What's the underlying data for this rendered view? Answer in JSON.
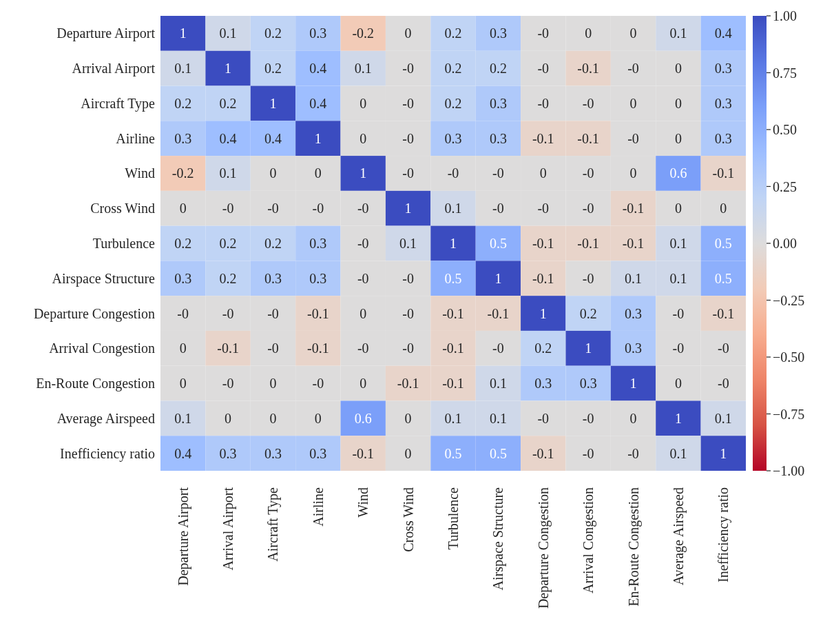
{
  "chart_data": {
    "type": "heatmap",
    "categories": [
      "Departure Airport",
      "Arrival Airport",
      "Aircraft Type",
      "Airline",
      "Wind",
      "Cross Wind",
      "Turbulence",
      "Airspace Structure",
      "Departure Congestion",
      "Arrival Congestion",
      "En-Route Congestion",
      "Average Airspeed",
      "Inefficiency ratio"
    ],
    "y_categories": [
      "Departure Airport",
      "Arrival Airport",
      "Aircraft Type",
      "Airline",
      "Wind",
      "Cross Wind",
      "Turbulence",
      "Airspace Structure",
      "Departure Congestion",
      "Arrival Congestion",
      "En-Route Congestion",
      "Average Airspeed",
      "Inefficiency ratio"
    ],
    "cells": [
      [
        1,
        0.1,
        0.2,
        0.3,
        -0.2,
        0,
        0.2,
        0.3,
        0,
        0,
        0,
        0.1,
        0.4
      ],
      [
        0.1,
        1,
        0.2,
        0.4,
        0.1,
        0,
        0.2,
        0.2,
        0,
        -0.1,
        0,
        0,
        0.3
      ],
      [
        0.2,
        0.2,
        1,
        0.4,
        0,
        0,
        0.2,
        0.3,
        0,
        0,
        0,
        0,
        0.3
      ],
      [
        0.3,
        0.4,
        0.4,
        1,
        0,
        0,
        0.3,
        0.3,
        -0.1,
        -0.1,
        0,
        0,
        0.3
      ],
      [
        -0.2,
        0.1,
        0,
        0,
        1,
        0,
        0,
        0,
        0,
        0,
        0,
        0.6,
        -0.1
      ],
      [
        0,
        0,
        0,
        0,
        0,
        1,
        0.1,
        0,
        0,
        0,
        -0.1,
        0,
        0
      ],
      [
        0.2,
        0.2,
        0.2,
        0.3,
        0,
        0.1,
        1,
        0.5,
        -0.1,
        -0.1,
        -0.1,
        0.1,
        0.5
      ],
      [
        0.3,
        0.2,
        0.3,
        0.3,
        0,
        0,
        0.5,
        1,
        -0.1,
        0,
        0.1,
        0.1,
        0.5
      ],
      [
        0,
        0,
        0,
        -0.1,
        0,
        0,
        -0.1,
        -0.1,
        1,
        0.2,
        0.3,
        0,
        -0.1
      ],
      [
        0,
        -0.1,
        0,
        -0.1,
        0,
        0,
        -0.1,
        0,
        0.2,
        1,
        0.3,
        0,
        0
      ],
      [
        0,
        0,
        0,
        0,
        0,
        -0.1,
        -0.1,
        0.1,
        0.3,
        0.3,
        1,
        0,
        0
      ],
      [
        0.1,
        0,
        0,
        0,
        0.6,
        0,
        0.1,
        0.1,
        0,
        0,
        0,
        1,
        0.1
      ],
      [
        0.4,
        0.3,
        0.3,
        0.3,
        -0.1,
        0,
        0.5,
        0.5,
        -0.1,
        0,
        0,
        0.1,
        1
      ]
    ],
    "cell_labels": [
      [
        "1",
        "0.1",
        "0.2",
        "0.3",
        "-0.2",
        "0",
        "0.2",
        "0.3",
        "-0",
        "0",
        "0",
        "0.1",
        "0.4"
      ],
      [
        "0.1",
        "1",
        "0.2",
        "0.4",
        "0.1",
        "-0",
        "0.2",
        "0.2",
        "-0",
        "-0.1",
        "-0",
        "0",
        "0.3"
      ],
      [
        "0.2",
        "0.2",
        "1",
        "0.4",
        "0",
        "-0",
        "0.2",
        "0.3",
        "-0",
        "-0",
        "0",
        "0",
        "0.3"
      ],
      [
        "0.3",
        "0.4",
        "0.4",
        "1",
        "0",
        "-0",
        "0.3",
        "0.3",
        "-0.1",
        "-0.1",
        "-0",
        "0",
        "0.3"
      ],
      [
        "-0.2",
        "0.1",
        "0",
        "0",
        "1",
        "-0",
        "-0",
        "-0",
        "0",
        "-0",
        "0",
        "0.6",
        "-0.1"
      ],
      [
        "0",
        "-0",
        "-0",
        "-0",
        "-0",
        "1",
        "0.1",
        "-0",
        "-0",
        "-0",
        "-0.1",
        "0",
        "0"
      ],
      [
        "0.2",
        "0.2",
        "0.2",
        "0.3",
        "-0",
        "0.1",
        "1",
        "0.5",
        "-0.1",
        "-0.1",
        "-0.1",
        "0.1",
        "0.5"
      ],
      [
        "0.3",
        "0.2",
        "0.3",
        "0.3",
        "-0",
        "-0",
        "0.5",
        "1",
        "-0.1",
        "-0",
        "0.1",
        "0.1",
        "0.5"
      ],
      [
        "-0",
        "-0",
        "-0",
        "-0.1",
        "0",
        "-0",
        "-0.1",
        "-0.1",
        "1",
        "0.2",
        "0.3",
        "-0",
        "-0.1"
      ],
      [
        "0",
        "-0.1",
        "-0",
        "-0.1",
        "-0",
        "-0",
        "-0.1",
        "-0",
        "0.2",
        "1",
        "0.3",
        "-0",
        "-0"
      ],
      [
        "0",
        "-0",
        "0",
        "-0",
        "0",
        "-0.1",
        "-0.1",
        "0.1",
        "0.3",
        "0.3",
        "1",
        "0",
        "-0"
      ],
      [
        "0.1",
        "0",
        "0",
        "0",
        "0.6",
        "0",
        "0.1",
        "0.1",
        "-0",
        "-0",
        "0",
        "1",
        "0.1"
      ],
      [
        "0.4",
        "0.3",
        "0.3",
        "0.3",
        "-0.1",
        "0",
        "0.5",
        "0.5",
        "-0.1",
        "-0",
        "-0",
        "0.1",
        "1"
      ]
    ],
    "clim": [
      -1,
      1
    ],
    "cticks": [
      {
        "value": -1,
        "label": "−1.00"
      },
      {
        "value": -0.75,
        "label": "−0.75"
      },
      {
        "value": -0.5,
        "label": "−0.50"
      },
      {
        "value": -0.25,
        "label": "−0.25"
      },
      {
        "value": 0,
        "label": "0.00"
      },
      {
        "value": 0.25,
        "label": "0.25"
      },
      {
        "value": 0.5,
        "label": "0.50"
      },
      {
        "value": 0.75,
        "label": "0.75"
      },
      {
        "value": 1,
        "label": "1.00"
      }
    ]
  }
}
